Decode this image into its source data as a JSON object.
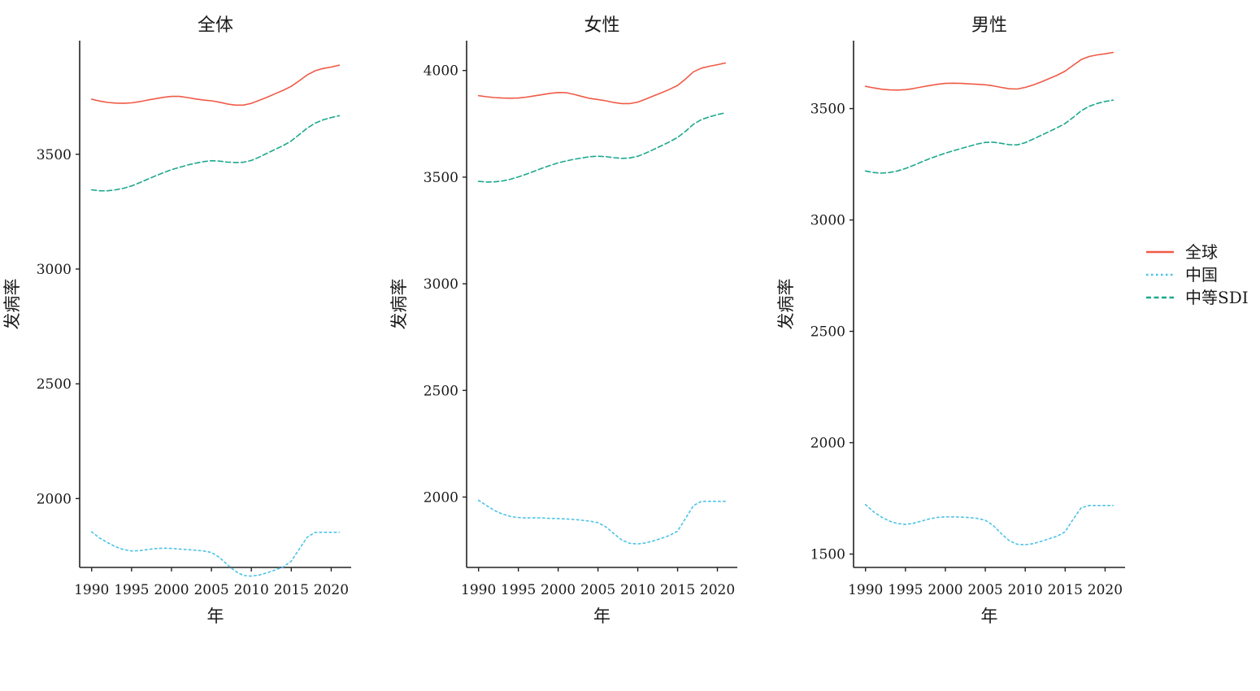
{
  "chart_data": [
    {
      "type": "line",
      "title": "全体",
      "xlabel": "年",
      "ylabel": "发病率",
      "xlim": [
        1988.5,
        2022.5
      ],
      "ylim": [
        1700,
        3995
      ],
      "xticks": [
        1990,
        1995,
        2000,
        2005,
        2010,
        2015,
        2020
      ],
      "yticks": [
        2000,
        2500,
        3000,
        3500
      ],
      "x": [
        1990,
        1991,
        1992,
        1993,
        1994,
        1995,
        1996,
        1997,
        1998,
        1999,
        2000,
        2001,
        2002,
        2003,
        2004,
        2005,
        2006,
        2007,
        2008,
        2009,
        2010,
        2011,
        2012,
        2013,
        2014,
        2015,
        2016,
        2017,
        2018,
        2019,
        2020,
        2021
      ],
      "series": [
        {
          "name": "全球",
          "values": [
            3740,
            3732,
            3726,
            3723,
            3722,
            3724,
            3729,
            3736,
            3742,
            3748,
            3752,
            3752,
            3747,
            3741,
            3736,
            3733,
            3727,
            3719,
            3714,
            3714,
            3722,
            3735,
            3749,
            3764,
            3779,
            3796,
            3820,
            3846,
            3864,
            3874,
            3880,
            3888
          ]
        },
        {
          "name": "中国",
          "values": [
            1855,
            1828,
            1808,
            1790,
            1778,
            1772,
            1773,
            1778,
            1782,
            1784,
            1783,
            1780,
            1778,
            1775,
            1772,
            1765,
            1744,
            1712,
            1683,
            1665,
            1662,
            1667,
            1677,
            1689,
            1703,
            1727,
            1780,
            1832,
            1853,
            1853,
            1853,
            1853
          ]
        },
        {
          "name": "中等SDI",
          "values": [
            3345,
            3341,
            3341,
            3345,
            3352,
            3362,
            3376,
            3391,
            3406,
            3420,
            3433,
            3443,
            3453,
            3461,
            3468,
            3472,
            3470,
            3466,
            3464,
            3465,
            3473,
            3488,
            3505,
            3522,
            3538,
            3558,
            3586,
            3614,
            3636,
            3650,
            3660,
            3668
          ]
        }
      ]
    },
    {
      "type": "line",
      "title": "女性",
      "xlabel": "年",
      "ylabel": "发病率",
      "xlim": [
        1988.5,
        2022.5
      ],
      "ylim": [
        1670,
        4140
      ],
      "xticks": [
        1990,
        1995,
        2000,
        2005,
        2010,
        2015,
        2020
      ],
      "yticks": [
        2000,
        2500,
        3000,
        3500,
        4000
      ],
      "x": [
        1990,
        1991,
        1992,
        1993,
        1994,
        1995,
        1996,
        1997,
        1998,
        1999,
        2000,
        2001,
        2002,
        2003,
        2004,
        2005,
        2006,
        2007,
        2008,
        2009,
        2010,
        2011,
        2012,
        2013,
        2014,
        2015,
        2016,
        2017,
        2018,
        2019,
        2020,
        2021
      ],
      "series": [
        {
          "name": "全球",
          "values": [
            3882,
            3877,
            3873,
            3871,
            3870,
            3871,
            3875,
            3881,
            3887,
            3893,
            3897,
            3896,
            3888,
            3878,
            3869,
            3864,
            3858,
            3850,
            3845,
            3845,
            3852,
            3866,
            3881,
            3896,
            3912,
            3930,
            3960,
            3994,
            4011,
            4020,
            4027,
            4035
          ]
        },
        {
          "name": "中国",
          "values": [
            1985,
            1960,
            1937,
            1920,
            1909,
            1904,
            1902,
            1903,
            1902,
            1900,
            1899,
            1897,
            1895,
            1891,
            1887,
            1880,
            1860,
            1828,
            1798,
            1783,
            1780,
            1785,
            1795,
            1807,
            1820,
            1840,
            1900,
            1960,
            1980,
            1980,
            1980,
            1980
          ]
        },
        {
          "name": "中等SDI",
          "values": [
            3480,
            3477,
            3478,
            3482,
            3490,
            3501,
            3514,
            3528,
            3542,
            3555,
            3567,
            3576,
            3584,
            3590,
            3596,
            3598,
            3596,
            3591,
            3588,
            3590,
            3598,
            3613,
            3630,
            3648,
            3666,
            3686,
            3715,
            3748,
            3770,
            3783,
            3793,
            3802
          ]
        }
      ]
    },
    {
      "type": "line",
      "title": "男性",
      "xlabel": "年",
      "ylabel": "发病率",
      "xlim": [
        1988.5,
        2022.5
      ],
      "ylim": [
        1440,
        3805
      ],
      "xticks": [
        1990,
        1995,
        2000,
        2005,
        2010,
        2015,
        2020
      ],
      "yticks": [
        1500,
        2000,
        2500,
        3000,
        3500
      ],
      "x": [
        1990,
        1991,
        1992,
        1993,
        1994,
        1995,
        1996,
        1997,
        1998,
        1999,
        2000,
        2001,
        2002,
        2003,
        2004,
        2005,
        2006,
        2007,
        2008,
        2009,
        2010,
        2011,
        2012,
        2013,
        2014,
        2015,
        2016,
        2017,
        2018,
        2019,
        2020,
        2021
      ],
      "series": [
        {
          "name": "全球",
          "values": [
            3600,
            3593,
            3587,
            3584,
            3583,
            3585,
            3590,
            3597,
            3603,
            3609,
            3613,
            3614,
            3613,
            3611,
            3609,
            3607,
            3602,
            3595,
            3589,
            3588,
            3595,
            3606,
            3620,
            3635,
            3650,
            3668,
            3694,
            3720,
            3734,
            3741,
            3746,
            3752
          ]
        },
        {
          "name": "中国",
          "values": [
            1722,
            1690,
            1666,
            1648,
            1637,
            1633,
            1638,
            1648,
            1658,
            1665,
            1667,
            1667,
            1666,
            1664,
            1660,
            1652,
            1628,
            1592,
            1560,
            1544,
            1542,
            1547,
            1557,
            1569,
            1580,
            1600,
            1656,
            1708,
            1718,
            1718,
            1718,
            1718
          ]
        },
        {
          "name": "中等SDI",
          "values": [
            3220,
            3213,
            3210,
            3213,
            3220,
            3231,
            3245,
            3260,
            3275,
            3288,
            3300,
            3311,
            3321,
            3331,
            3341,
            3348,
            3349,
            3344,
            3338,
            3337,
            3347,
            3363,
            3380,
            3397,
            3414,
            3433,
            3460,
            3490,
            3510,
            3523,
            3532,
            3538
          ]
        }
      ]
    }
  ],
  "legend": {
    "position": "right",
    "entries": [
      {
        "label": "全球",
        "color": "#F05A46",
        "dash": "solid"
      },
      {
        "label": "中国",
        "color": "#4DC3E6",
        "dash": "dotted"
      },
      {
        "label": "中等SDI",
        "color": "#1DA88E",
        "dash": "dashed"
      }
    ]
  }
}
